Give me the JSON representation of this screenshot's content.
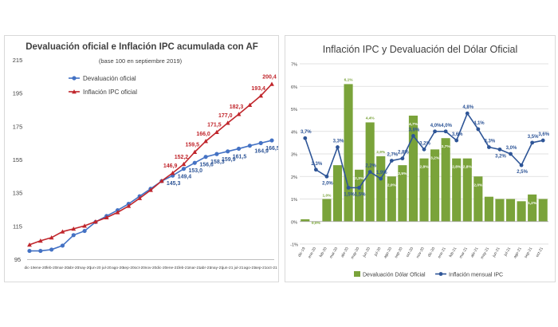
{
  "chart_data": [
    {
      "type": "line",
      "title": "Devaluación oficial e Inflación IPC acumulada con AF",
      "subtitle": "(base 100 en septiembre 2019)",
      "categories": [
        "dic-19",
        "ene-20",
        "feb-20",
        "mar-20",
        "abr-20",
        "may-20",
        "jun-20",
        "jul-20",
        "ago-20",
        "sep-20",
        "oct-20",
        "nov-20",
        "dic-20",
        "ene-21",
        "feb-21",
        "mar-21",
        "abr-21",
        "may-21",
        "jun-21",
        "jul-21",
        "ago-21",
        "sep-21",
        "oct-21"
      ],
      "xticks": [
        "dic-19",
        "ene-20",
        "feb-20",
        "mar-20",
        "abr-20",
        "may-20",
        "jun-20",
        "jul-20",
        "ago-20",
        "sep-20",
        "oct-20",
        "nov-20",
        "dic-20",
        "ene-21",
        "feb-21",
        "mar-21",
        "abr-21",
        "may-21",
        "jun-21",
        "jul-21",
        "ago-21",
        "sep-21",
        "oct-21"
      ],
      "ylim": [
        95,
        215
      ],
      "yticks": [
        "95",
        "115",
        "135",
        "155",
        "175",
        "195",
        "215"
      ],
      "series": [
        {
          "name": "Devaluación oficial",
          "color": "#4472c4",
          "marker": "circle",
          "values": [
            100.0,
            100.0,
            100.8,
            103.2,
            109.5,
            112.0,
            117.4,
            121.0,
            124.5,
            128.3,
            132.9,
            137.4,
            142.0,
            145.3,
            149.4,
            153.0,
            156.6,
            158.3,
            159.9,
            161.5,
            163.3,
            164.9,
            166.5
          ],
          "labels": [
            "",
            "",
            "",
            "",
            "",
            "",
            "",
            "",
            "",
            "",
            "",
            "",
            "",
            "145,3",
            "149,4",
            "153,0",
            "156,6",
            "158,3",
            "159,9",
            "161,5",
            "",
            "164,9",
            "166,5"
          ]
        },
        {
          "name": "Inflación IPC oficial",
          "color": "#c0262c",
          "marker": "triangle",
          "values": [
            103.7,
            106.1,
            108.0,
            111.6,
            113.3,
            115.1,
            117.6,
            120.1,
            123.2,
            127.0,
            131.7,
            136.6,
            142.1,
            146.9,
            152.2,
            159.5,
            166.0,
            171.5,
            177.0,
            182.3,
            187.8,
            193.4,
            200.4
          ],
          "labels": [
            "",
            "",
            "",
            "",
            "",
            "",
            "",
            "",
            "",
            "",
            "",
            "",
            "",
            "146,9",
            "152,2",
            "159,5",
            "166,0",
            "171,5",
            "177,0",
            "182,3",
            "",
            "193,4",
            "200,4"
          ]
        }
      ]
    },
    {
      "type": "bar",
      "title": "Inflación IPC y Devaluación del Dólar Oficial",
      "categories": [
        "dic-19",
        "ene-20",
        "feb-20",
        "mar-20",
        "abr-20",
        "may-20",
        "jun-20",
        "jul-20",
        "ago-20",
        "sep-20",
        "oct-20",
        "nov-20",
        "dic-20",
        "ene-21",
        "feb-21",
        "mar-21",
        "abr-21",
        "may-21",
        "jun-21",
        "jul-21",
        "ago-21",
        "sep-21",
        "oct-21"
      ],
      "ylim": [
        -1,
        7
      ],
      "yticks": [
        "-1%",
        "0%",
        "1%",
        "2%",
        "3%",
        "4%",
        "5%",
        "6%",
        "7%"
      ],
      "series": [
        {
          "name": "Devaluación Dólar Oficial",
          "kind": "bar",
          "color": "#7aa33a",
          "values": [
            0.1,
            0.0,
            1.0,
            2.5,
            6.1,
            2.3,
            4.4,
            2.9,
            2.0,
            2.5,
            4.7,
            2.8,
            3.2,
            3.7,
            2.8,
            2.8,
            2.0,
            1.1,
            1.0,
            1.0,
            0.9,
            1.2,
            1.0
          ],
          "labels": [
            "",
            "0,0%",
            "1,0%",
            "2,5%",
            "6,1%",
            "2,3%",
            "4,4%",
            "2,9%",
            "2,0%",
            "2,5%",
            "4,7%",
            "2,8%",
            "3,2%",
            "3,7%",
            "2,8%",
            "2,8%",
            "2,0%",
            "1,1%",
            "1,0%",
            "1,0%",
            "0,9%",
            "1,2%",
            "1,0%"
          ]
        },
        {
          "name": "Inflación mensual IPC",
          "kind": "line",
          "color": "#2e5597",
          "values": [
            3.7,
            2.3,
            2.0,
            3.3,
            1.5,
            1.5,
            2.2,
            1.9,
            2.7,
            2.8,
            3.8,
            3.2,
            4.0,
            4.0,
            3.6,
            4.8,
            4.1,
            3.3,
            3.2,
            3.0,
            2.5,
            3.5,
            3.6
          ],
          "labels": [
            "3,7%",
            "2,3%",
            "2,0%",
            "3,3%",
            "1,5%",
            "1,5%",
            "2,2%",
            "1,9%",
            "2,7%",
            "2,8%",
            "3,8%",
            "3,2%",
            "4,0%",
            "4,0%",
            "3,6%",
            "4,8%",
            "4,1%",
            "3,3%",
            "3,2%",
            "3,0%",
            "2,5%",
            "3,5%",
            "3,6%"
          ]
        }
      ]
    }
  ]
}
